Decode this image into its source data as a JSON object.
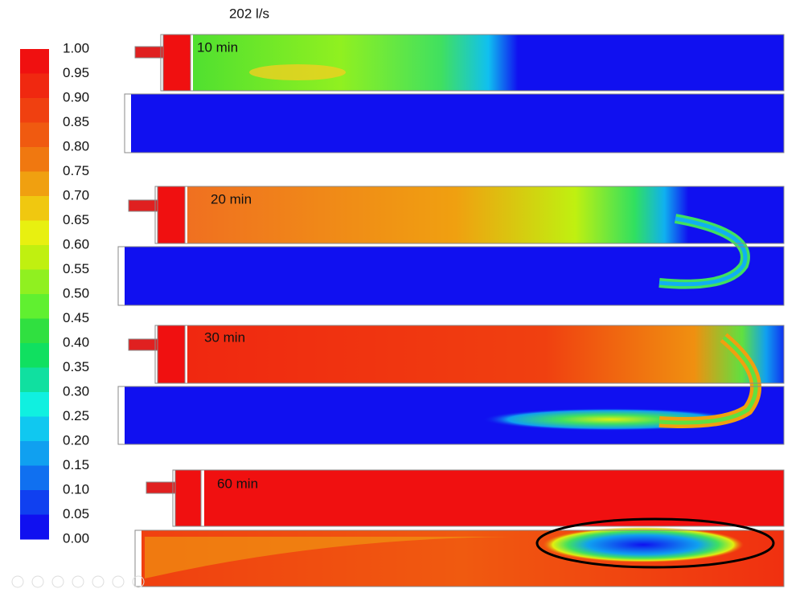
{
  "title": "202 l/s",
  "colorbar": {
    "labels": [
      "1.00",
      "0.95",
      "0.90",
      "0.85",
      "0.80",
      "0.75",
      "0.70",
      "0.65",
      "0.60",
      "0.55",
      "0.50",
      "0.45",
      "0.40",
      "0.35",
      "0.30",
      "0.25",
      "0.20",
      "0.15",
      "0.10",
      "0.05",
      "0.00"
    ]
  },
  "panels": [
    {
      "label": "10 min"
    },
    {
      "label": "20 min"
    },
    {
      "label": "30 min"
    },
    {
      "label": "60 min"
    }
  ]
}
